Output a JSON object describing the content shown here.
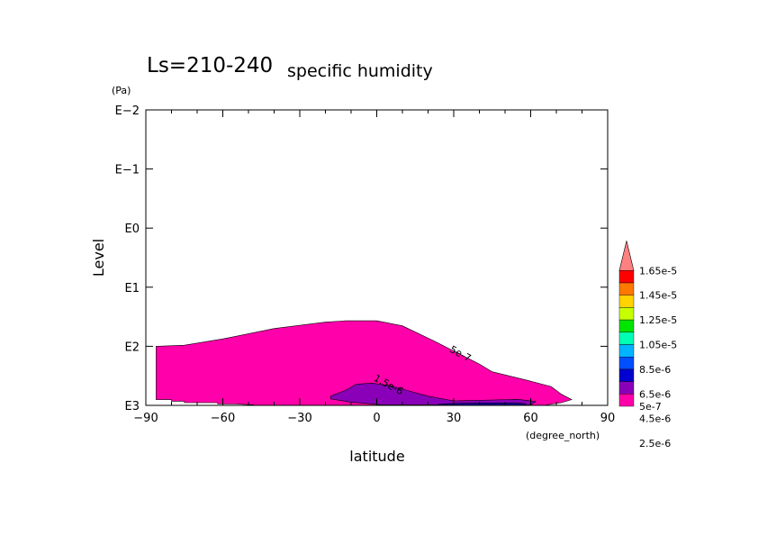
{
  "chart_data": {
    "type": "contour",
    "title_main": "Ls=210-240",
    "title_sub": "specific humidity",
    "xlabel": "latitude",
    "x_unit": "(degree_north)",
    "ylabel": "Level",
    "y_unit": "(Pa)",
    "y_scale": "log",
    "xlim": [
      -90,
      90
    ],
    "ylim_pa": [
      0.01,
      1000
    ],
    "x_ticks": [
      {
        "value": -90,
        "label": "−90"
      },
      {
        "value": -60,
        "label": "−60"
      },
      {
        "value": -30,
        "label": "−30"
      },
      {
        "value": 0,
        "label": "0"
      },
      {
        "value": 30,
        "label": "30"
      },
      {
        "value": 60,
        "label": "60"
      },
      {
        "value": 90,
        "label": "90"
      }
    ],
    "y_ticks": [
      {
        "value": 0.01,
        "label": "E−2"
      },
      {
        "value": 0.1,
        "label": "E−1"
      },
      {
        "value": 1,
        "label": "E0"
      },
      {
        "value": 10,
        "label": "E1"
      },
      {
        "value": 100,
        "label": "E2"
      },
      {
        "value": 1000,
        "label": "E3"
      }
    ],
    "contour_labels": [
      {
        "text": "5e-7",
        "lat": 32,
        "level": 150
      },
      {
        "text": "1.5e-6",
        "lat": 4,
        "level": 500
      }
    ],
    "regions": [
      {
        "level_value": "5e-7",
        "color": "#ff00aa",
        "boundary": [
          [
            -86,
            100
          ],
          [
            -75,
            96
          ],
          [
            -60,
            75
          ],
          [
            -40,
            50
          ],
          [
            -20,
            39
          ],
          [
            -12,
            37
          ],
          [
            0,
            37
          ],
          [
            10,
            45
          ],
          [
            22,
            80
          ],
          [
            30,
            120
          ],
          [
            40,
            200
          ],
          [
            45,
            270
          ],
          [
            58,
            370
          ],
          [
            68,
            480
          ],
          [
            72,
            650
          ],
          [
            76,
            800
          ],
          [
            72,
            900
          ],
          [
            65,
            1000
          ],
          [
            -48,
            1000
          ],
          [
            -48,
            980
          ],
          [
            -55,
            950
          ],
          [
            -62,
            950
          ],
          [
            -62,
            900
          ],
          [
            -75,
            900
          ],
          [
            -75,
            850
          ],
          [
            -80,
            850
          ],
          [
            -80,
            800
          ],
          [
            -86,
            800
          ],
          [
            -86,
            100
          ]
        ]
      },
      {
        "level_value": "1.5e-6",
        "color": "#8a00b8",
        "boundary": [
          [
            -18,
            700
          ],
          [
            -12,
            550
          ],
          [
            -8,
            440
          ],
          [
            -2,
            420
          ],
          [
            5,
            460
          ],
          [
            12,
            560
          ],
          [
            20,
            700
          ],
          [
            30,
            840
          ],
          [
            45,
            810
          ],
          [
            55,
            790
          ],
          [
            62,
            860
          ],
          [
            60,
            980
          ],
          [
            2,
            980
          ],
          [
            -10,
            880
          ],
          [
            -18,
            780
          ],
          [
            -18,
            700
          ]
        ]
      },
      {
        "level_value": "2.5e-6",
        "color": "#1800a8",
        "boundary": [
          [
            24,
            950
          ],
          [
            30,
            930
          ],
          [
            42,
            910
          ],
          [
            54,
            910
          ],
          [
            58,
            940
          ],
          [
            58,
            990
          ],
          [
            24,
            990
          ],
          [
            24,
            950
          ]
        ]
      }
    ],
    "legend": {
      "levels": [
        "1.65e-5",
        "1.45e-5",
        "1.25e-5",
        "1.05e-5",
        "8.5e-6",
        "6.5e-6",
        "4.5e-6",
        "2.5e-6",
        "5e-7"
      ],
      "colors": [
        "#ff8080",
        "#ff0000",
        "#ff7800",
        "#ffd200",
        "#c8ff00",
        "#00e600",
        "#00ffb4",
        "#00b4ff",
        "#0050ff",
        "#0000d0",
        "#8a00b8",
        "#ff00aa"
      ]
    }
  }
}
